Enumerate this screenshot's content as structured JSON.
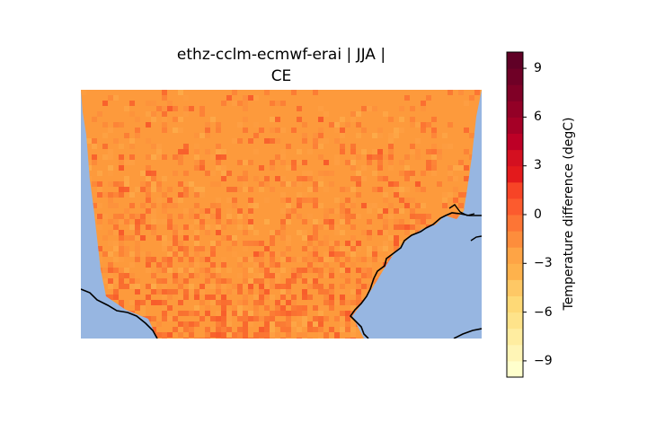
{
  "title": {
    "line1": "ethz-cclm-ecmwf-erai | JJA |",
    "line2": "CE"
  },
  "map": {
    "ocean_color": "#97b6e1",
    "coastline_color": "#000000",
    "field_base_color": "#fd9a3c",
    "region": "CE"
  },
  "colorbar": {
    "label": "Temperature difference (degC)",
    "ticks": [
      "9",
      "6",
      "3",
      "0",
      "−3",
      "−6",
      "−9"
    ],
    "tick_values": [
      9,
      6,
      3,
      0,
      -3,
      -6,
      -9
    ],
    "range": [
      -10,
      10
    ],
    "levels": 20,
    "colormap": "YlOrRd",
    "colors": [
      "#ffffcc",
      "#fff5b6",
      "#ffeda0",
      "#fee38a",
      "#fed976",
      "#fec865",
      "#feb24c",
      "#fea445",
      "#fd8d3c",
      "#fd7535",
      "#fc5b2e",
      "#f74426",
      "#e31a1c",
      "#d41020",
      "#bd0026",
      "#a50026",
      "#930026",
      "#800026",
      "#6f0026",
      "#600026"
    ]
  }
}
